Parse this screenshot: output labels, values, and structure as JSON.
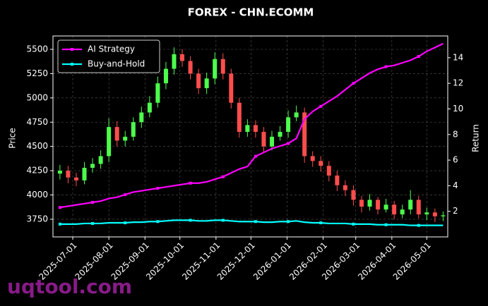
{
  "chart_data": {
    "type": "candlestick",
    "title": "FOREX - CHN.ECOMM",
    "ylabel": "Price",
    "y2label": "Return",
    "watermark": "uqtool.com",
    "x": [
      "2025-06-20",
      "2025-06-27",
      "2025-07-04",
      "2025-07-11",
      "2025-07-18",
      "2025-07-25",
      "2025-08-01",
      "2025-08-08",
      "2025-08-15",
      "2025-08-22",
      "2025-08-29",
      "2025-09-05",
      "2025-09-12",
      "2025-09-19",
      "2025-09-26",
      "2025-10-03",
      "2025-10-10",
      "2025-10-17",
      "2025-10-24",
      "2025-10-31",
      "2025-11-07",
      "2025-11-14",
      "2025-11-21",
      "2025-11-28",
      "2025-12-05",
      "2025-12-12",
      "2025-12-19",
      "2025-12-26",
      "2026-01-02",
      "2026-01-09",
      "2026-01-16",
      "2026-01-23",
      "2026-01-30",
      "2026-02-06",
      "2026-02-13",
      "2026-02-20",
      "2026-02-27",
      "2026-03-06",
      "2026-03-13",
      "2026-03-20",
      "2026-03-27",
      "2026-04-03",
      "2026-04-10",
      "2026-04-17",
      "2026-04-24",
      "2026-05-01",
      "2026-05-08",
      "2026-05-15"
    ],
    "open": [
      4220,
      4250,
      4180,
      4150,
      4280,
      4320,
      4400,
      4700,
      4560,
      4600,
      4750,
      4850,
      4950,
      5150,
      5300,
      5450,
      5380,
      5250,
      5100,
      5200,
      5400,
      5250,
      4950,
      4650,
      4720,
      4650,
      4500,
      4600,
      4650,
      4800,
      4850,
      4400,
      4350,
      4300,
      4200,
      4100,
      4050,
      3950,
      3880,
      3950,
      3850,
      3900,
      3800,
      3850,
      3950,
      3800,
      3820,
      3780
    ],
    "high": [
      4310,
      4300,
      4230,
      4340,
      4380,
      4460,
      4790,
      4760,
      4660,
      4800,
      4910,
      5020,
      5220,
      5370,
      5520,
      5500,
      5430,
      5300,
      5260,
      5470,
      5460,
      5300,
      5000,
      4780,
      4770,
      4700,
      4660,
      4710,
      4870,
      4920,
      4900,
      4450,
      4400,
      4350,
      4250,
      4150,
      4100,
      3990,
      4010,
      3980,
      3960,
      3940,
      3900,
      4050,
      3990,
      3870,
      3860,
      3830
    ],
    "low": [
      4160,
      4120,
      4090,
      4110,
      4230,
      4270,
      4340,
      4500,
      4500,
      4560,
      4690,
      4800,
      4900,
      5090,
      5240,
      5320,
      5190,
      5040,
      5040,
      5140,
      5190,
      4890,
      4590,
      4600,
      4590,
      4440,
      4460,
      4560,
      4590,
      4760,
      4330,
      4290,
      4240,
      4140,
      4040,
      3990,
      3890,
      3820,
      3840,
      3800,
      3820,
      3750,
      3760,
      3800,
      3760,
      3740,
      3720,
      3730
    ],
    "close": [
      4250,
      4180,
      4150,
      4280,
      4320,
      4400,
      4700,
      4560,
      4600,
      4750,
      4850,
      4950,
      5150,
      5300,
      5450,
      5380,
      5250,
      5100,
      5200,
      5400,
      5250,
      4950,
      4650,
      4720,
      4650,
      4500,
      4600,
      4650,
      4800,
      4850,
      4400,
      4350,
      4300,
      4200,
      4100,
      4050,
      3950,
      3880,
      3950,
      3850,
      3900,
      3800,
      3850,
      3950,
      3800,
      3820,
      3780,
      3790
    ],
    "up_color": "#4dff4d",
    "down_color": "#ff4d4d",
    "series": [
      {
        "name": "AI Strategy",
        "color": "#ff00ff",
        "axis": "y2",
        "values": [
          2.3,
          2.4,
          2.5,
          2.6,
          2.7,
          2.8,
          3.0,
          3.1,
          3.3,
          3.5,
          3.6,
          3.7,
          3.8,
          3.9,
          4.0,
          4.1,
          4.2,
          4.2,
          4.3,
          4.5,
          4.7,
          5.0,
          5.3,
          5.5,
          6.3,
          6.6,
          6.9,
          7.1,
          7.3,
          7.7,
          9.2,
          9.8,
          10.2,
          10.6,
          11.0,
          11.5,
          12.0,
          12.4,
          12.8,
          13.1,
          13.3,
          13.4,
          13.6,
          13.8,
          14.1,
          14.5,
          14.8,
          15.1
        ]
      },
      {
        "name": "Buy-and-Hold",
        "color": "#00ffff",
        "axis": "y2",
        "values": [
          1.0,
          1.0,
          1.0,
          1.05,
          1.05,
          1.05,
          1.1,
          1.1,
          1.1,
          1.15,
          1.15,
          1.2,
          1.2,
          1.25,
          1.3,
          1.3,
          1.3,
          1.25,
          1.25,
          1.3,
          1.3,
          1.25,
          1.2,
          1.2,
          1.2,
          1.15,
          1.15,
          1.2,
          1.2,
          1.25,
          1.15,
          1.1,
          1.1,
          1.05,
          1.05,
          1.05,
          1.0,
          1.0,
          1.0,
          0.95,
          0.95,
          0.95,
          0.95,
          0.9,
          0.9,
          0.9,
          0.9,
          0.9
        ]
      }
    ],
    "xlim": [
      "2025-06-14",
      "2026-05-19"
    ],
    "xticks": [
      "2025-07-01",
      "2025-08-01",
      "2025-09-01",
      "2025-10-01",
      "2025-11-01",
      "2025-12-01",
      "2026-01-01",
      "2026-02-01",
      "2026-03-01",
      "2026-04-01",
      "2026-05-01"
    ],
    "ylim": [
      3568,
      5638
    ],
    "yticks": [
      3750,
      4000,
      4250,
      4500,
      4750,
      5000,
      5250,
      5500
    ],
    "y2lim": [
      0,
      15.7
    ],
    "y2ticks": [
      2,
      4,
      6,
      8,
      10,
      12,
      14
    ],
    "grid": true,
    "legend": "upper left"
  }
}
